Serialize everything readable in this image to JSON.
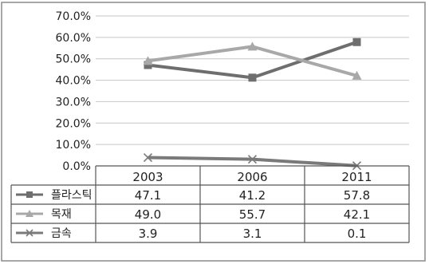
{
  "chart_data": {
    "type": "line",
    "categories": [
      "2003",
      "2006",
      "2011"
    ],
    "ylim": [
      0,
      70
    ],
    "ytick_labels": [
      "0.0%",
      "10.0%",
      "20.0%",
      "30.0%",
      "40.0%",
      "50.0%",
      "60.0%",
      "70.0%"
    ],
    "grid": true,
    "legend": "data-table",
    "series": [
      {
        "name": "플라스틱",
        "values": [
          47.1,
          41.2,
          57.8
        ],
        "value_labels": [
          "47.1",
          "41.2",
          "57.8"
        ],
        "marker": "square",
        "color": "#6e6e6e"
      },
      {
        "name": "목재",
        "values": [
          49.0,
          55.7,
          42.1
        ],
        "value_labels": [
          "49.0",
          "55.7",
          "42.1"
        ],
        "marker": "triangle",
        "color": "#a8a8a8"
      },
      {
        "name": "금속",
        "values": [
          3.9,
          3.1,
          0.1
        ],
        "value_labels": [
          "3.9",
          "3.1",
          "0.1"
        ],
        "marker": "x",
        "color": "#7a7a7a"
      }
    ]
  }
}
